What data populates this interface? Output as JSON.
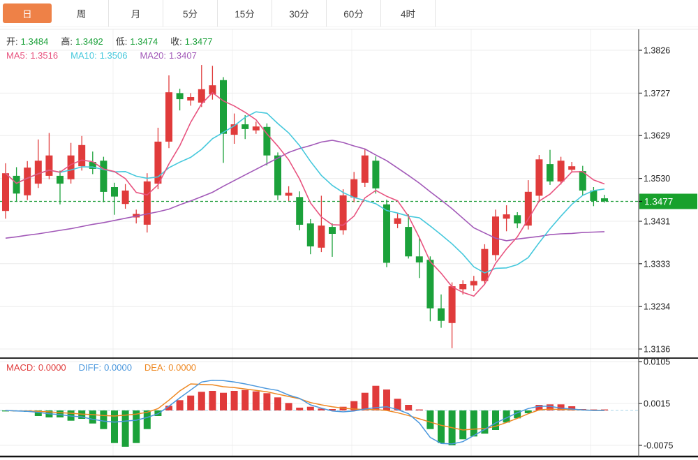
{
  "tabs": [
    {
      "label": "日",
      "active": true
    },
    {
      "label": "周",
      "active": false
    },
    {
      "label": "月",
      "active": false
    },
    {
      "label": "5分",
      "active": false
    },
    {
      "label": "15分",
      "active": false
    },
    {
      "label": "30分",
      "active": false
    },
    {
      "label": "60分",
      "active": false
    },
    {
      "label": "4时",
      "active": false
    }
  ],
  "quote_bar": {
    "items": [
      {
        "label": "开:",
        "value": "1.3484"
      },
      {
        "label": "高:",
        "value": "1.3492"
      },
      {
        "label": "低:",
        "value": "1.3474"
      },
      {
        "label": "收:",
        "value": "1.3477"
      }
    ]
  },
  "ma_bar": {
    "items": [
      {
        "label": "MA5:",
        "value": "1.3516",
        "color": "#e8537f"
      },
      {
        "label": "MA10:",
        "value": "1.3506",
        "color": "#45c8dc"
      },
      {
        "label": "MA20:",
        "value": "1.3407",
        "color": "#a259b8"
      }
    ]
  },
  "macd_bar": {
    "items": [
      {
        "label": "MACD:",
        "value": "0.0000",
        "color": "#e03b3b"
      },
      {
        "label": "DIFF:",
        "value": "0.0000",
        "color": "#4a97dd"
      },
      {
        "label": "DEA:",
        "value": "0.0000",
        "color": "#ee8822"
      }
    ]
  },
  "colors": {
    "up": "#e03b3b",
    "down": "#1ba13a",
    "badge_bg": "#18a12c",
    "badge_text": "#ffffff",
    "dashed_price": "#1f9d3a",
    "ma5": "#e8537f",
    "ma10": "#45c8dc",
    "ma20": "#a259b8",
    "diff": "#4a97dd",
    "dea": "#ee8822",
    "tab_active_bg": "#ee8147",
    "grid": "#ececec",
    "vgrid": "#f2f2f2",
    "axis": "#555555",
    "tick_text": "#222222",
    "label_text": "#333333",
    "quote_value": "#1ba13a",
    "zero_dash": "#a8d4ea",
    "separator_dark": "#2b2b2b",
    "bottom_line": "#111111",
    "tab_border": "#e4e4e4"
  },
  "chart_data": {
    "type": "candlestick",
    "main_panel": {
      "y_tick_labels": [
        "1.3826",
        "1.3727",
        "1.3629",
        "1.3530",
        "1.3431",
        "1.3333",
        "1.3234",
        "1.3136"
      ],
      "y_tick_values": [
        1.3826,
        1.3727,
        1.3629,
        1.353,
        1.3431,
        1.3333,
        1.3234,
        1.3136
      ],
      "y_top": 1.3826,
      "y_bottom": 1.3136,
      "current_price": 1.3477,
      "current_price_label": "1.3477",
      "candles_ohlc": [
        [
          1.3455,
          1.3565,
          1.3437,
          1.3542
        ],
        [
          1.3536,
          1.3556,
          1.3476,
          1.3495
        ],
        [
          1.3491,
          1.357,
          1.348,
          1.3555
        ],
        [
          1.3518,
          1.362,
          1.3508,
          1.3571
        ],
        [
          1.3536,
          1.3635,
          1.3528,
          1.3583
        ],
        [
          1.3536,
          1.3548,
          1.347,
          1.3518
        ],
        [
          1.3528,
          1.3612,
          1.3518,
          1.3583
        ],
        [
          1.3558,
          1.3628,
          1.3548,
          1.3607
        ],
        [
          1.3568,
          1.3592,
          1.354,
          1.3552
        ],
        [
          1.3571,
          1.358,
          1.3475,
          1.3499
        ],
        [
          1.351,
          1.352,
          1.3446,
          1.3488
        ],
        [
          1.3471,
          1.3517,
          1.346,
          1.3502
        ],
        [
          1.344,
          1.3458,
          1.3426,
          1.3448
        ],
        [
          1.3423,
          1.3542,
          1.3405,
          1.3523
        ],
        [
          1.3518,
          1.3647,
          1.3505,
          1.3615
        ],
        [
          1.3615,
          1.3768,
          1.36,
          1.3729
        ],
        [
          1.3727,
          1.3737,
          1.3687,
          1.3713
        ],
        [
          1.371,
          1.3727,
          1.3698,
          1.3718
        ],
        [
          1.3705,
          1.3792,
          1.3695,
          1.3736
        ],
        [
          1.3724,
          1.379,
          1.3712,
          1.3745
        ],
        [
          1.3757,
          1.3764,
          1.3566,
          1.3633
        ],
        [
          1.3631,
          1.368,
          1.361,
          1.3655
        ],
        [
          1.3655,
          1.3676,
          1.3621,
          1.3644
        ],
        [
          1.3641,
          1.3661,
          1.3633,
          1.365
        ],
        [
          1.3649,
          1.3657,
          1.356,
          1.3583
        ],
        [
          1.3583,
          1.359,
          1.348,
          1.3491
        ],
        [
          1.349,
          1.3512,
          1.3478,
          1.3497
        ],
        [
          1.3487,
          1.35,
          1.341,
          1.3423
        ],
        [
          1.3426,
          1.3436,
          1.3355,
          1.3373
        ],
        [
          1.337,
          1.349,
          1.336,
          1.3421
        ],
        [
          1.3418,
          1.3426,
          1.3349,
          1.3402
        ],
        [
          1.341,
          1.3505,
          1.34,
          1.3491
        ],
        [
          1.3486,
          1.3545,
          1.3475,
          1.3528
        ],
        [
          1.352,
          1.3597,
          1.351,
          1.3583
        ],
        [
          1.3571,
          1.3581,
          1.3495,
          1.3507
        ],
        [
          1.347,
          1.3481,
          1.3325,
          1.3335
        ],
        [
          1.3425,
          1.345,
          1.3415,
          1.3438
        ],
        [
          1.3418,
          1.3447,
          1.3345,
          1.335
        ],
        [
          1.335,
          1.3392,
          1.33,
          1.3336
        ],
        [
          1.3342,
          1.335,
          1.32,
          1.323
        ],
        [
          1.323,
          1.3262,
          1.3185,
          1.3201
        ],
        [
          1.3196,
          1.329,
          1.3138,
          1.3281
        ],
        [
          1.3274,
          1.3295,
          1.3262,
          1.3286
        ],
        [
          1.3283,
          1.3305,
          1.327,
          1.3293
        ],
        [
          1.3293,
          1.3378,
          1.3285,
          1.3367
        ],
        [
          1.3353,
          1.3458,
          1.334,
          1.3442
        ],
        [
          1.3437,
          1.3468,
          1.3408,
          1.3447
        ],
        [
          1.3445,
          1.3452,
          1.3415,
          1.3426
        ],
        [
          1.3421,
          1.3526,
          1.3412,
          1.3499
        ],
        [
          1.349,
          1.3584,
          1.3478,
          1.3574
        ],
        [
          1.3563,
          1.3596,
          1.3515,
          1.3523
        ],
        [
          1.3523,
          1.358,
          1.3516,
          1.3571
        ],
        [
          1.355,
          1.3568,
          1.3545,
          1.3558
        ],
        [
          1.3547,
          1.3559,
          1.349,
          1.3502
        ],
        [
          1.3502,
          1.351,
          1.3466,
          1.3478
        ],
        [
          1.3484,
          1.3492,
          1.3474,
          1.3477
        ]
      ],
      "ma5_period": 5,
      "ma10_period": 10,
      "ma20": [
        1.3392,
        1.3395,
        1.3399,
        1.3402,
        1.3406,
        1.341,
        1.3414,
        1.3419,
        1.3424,
        1.3428,
        1.3433,
        1.3438,
        1.3443,
        1.3448,
        1.3453,
        1.3459,
        1.3469,
        1.3478,
        1.3488,
        1.3498,
        1.3512,
        1.3525,
        1.3538,
        1.3551,
        1.3564,
        1.3577,
        1.359,
        1.3599,
        1.3606,
        1.3614,
        1.3618,
        1.3613,
        1.3605,
        1.3598,
        1.3584,
        1.3571,
        1.3554,
        1.3537,
        1.3519,
        1.3499,
        1.348,
        1.346,
        1.3438,
        1.3416,
        1.3404,
        1.3392,
        1.3386,
        1.339,
        1.3393,
        1.3396,
        1.34,
        1.3402,
        1.3403,
        1.3405,
        1.3406,
        1.3407
      ]
    },
    "macd_panel": {
      "y_tick_labels": [
        "0.0105",
        "0.0015",
        "-0.0075"
      ],
      "y_tick_values": [
        0.0105,
        0.0015,
        -0.0075
      ],
      "histogram": [
        -0.0002,
        -0.0002,
        -0.0003,
        -0.0012,
        -0.0015,
        -0.0015,
        -0.0022,
        -0.0018,
        -0.0028,
        -0.004,
        -0.007,
        -0.0078,
        -0.007,
        -0.004,
        -0.0012,
        0.001,
        0.0022,
        0.0032,
        0.004,
        0.0042,
        0.0038,
        0.0042,
        0.0044,
        0.0041,
        0.0037,
        0.0028,
        0.0016,
        0.0006,
        0.0008,
        0.0004,
        0.0003,
        0.0008,
        0.002,
        0.0038,
        0.0053,
        0.0045,
        0.0025,
        0.0012,
        0.0002,
        -0.004,
        -0.007,
        -0.0075,
        -0.0062,
        -0.0056,
        -0.005,
        -0.0042,
        -0.0026,
        -0.0017,
        -0.0006,
        0.0012,
        0.0013,
        0.0013,
        0.0009,
        0.0003,
        0.0001,
        0.0
      ],
      "diff": [
        0.0,
        -0.0001,
        -0.0002,
        -0.0004,
        -0.0007,
        -0.0009,
        -0.0012,
        -0.0014,
        -0.0019,
        -0.0023,
        -0.0025,
        -0.0023,
        -0.0021,
        -0.0015,
        -0.0007,
        0.0009,
        0.0027,
        0.0044,
        0.0061,
        0.0065,
        0.0064,
        0.0061,
        0.0057,
        0.0052,
        0.0047,
        0.0043,
        0.0033,
        0.0026,
        0.0012,
        0.0005,
        -0.0001,
        -0.0003,
        -0.0001,
        0.0003,
        0.0006,
        0.0008,
        0.0002,
        -0.0007,
        -0.0027,
        -0.0058,
        -0.0071,
        -0.0072,
        -0.0067,
        -0.0054,
        -0.0041,
        -0.0027,
        -0.0016,
        -0.0005,
        0.0004,
        0.0009,
        0.0009,
        0.0005,
        0.0003,
        0.0001,
        0.0,
        0.0
      ],
      "dea": [
        0.0,
        -0.0001,
        -0.0001,
        -0.0002,
        -0.0003,
        -0.0005,
        -0.0006,
        -0.0008,
        -0.0009,
        -0.0011,
        -0.0012,
        -0.001,
        -0.0008,
        -0.0004,
        0.0004,
        0.0022,
        0.0042,
        0.0057,
        0.0056,
        0.0055,
        0.0051,
        0.0049,
        0.0046,
        0.0043,
        0.004,
        0.0035,
        0.003,
        0.0025,
        0.0017,
        0.0012,
        0.0008,
        0.0005,
        0.0003,
        0.0002,
        0.0002,
        0.0,
        -0.0005,
        -0.0011,
        -0.0018,
        -0.0025,
        -0.0032,
        -0.0037,
        -0.0042,
        -0.004,
        -0.0039,
        -0.0034,
        -0.0026,
        -0.0017,
        -0.0007,
        0.0001,
        0.0003,
        0.0002,
        0.0002,
        0.0001,
        0.0,
        0.0
      ]
    }
  }
}
